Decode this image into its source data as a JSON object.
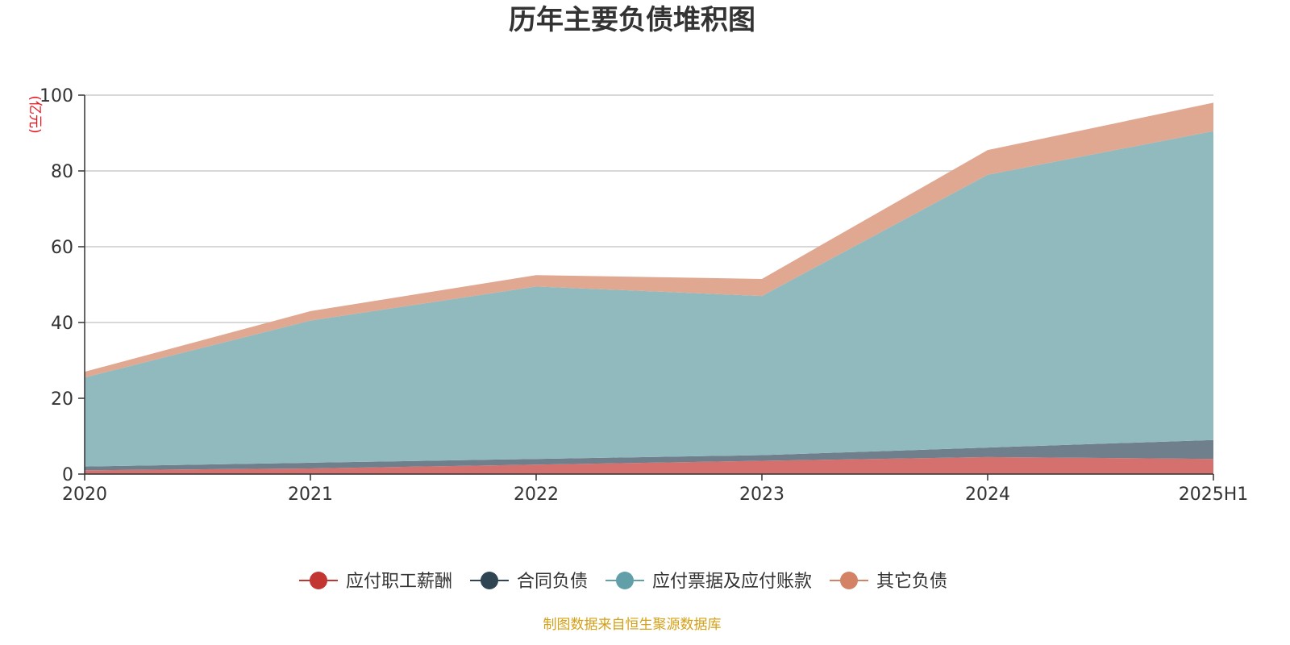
{
  "chart_data": {
    "type": "area",
    "stacked": true,
    "title": "历年主要负债堆积图",
    "unit_label": "(亿元)",
    "categories": [
      "2020",
      "2021",
      "2022",
      "2023",
      "2024",
      "2025H1"
    ],
    "y_ticks": [
      "0",
      "20",
      "40",
      "60",
      "80",
      "100"
    ],
    "ylim": [
      0,
      100
    ],
    "grid": true,
    "legend_position": "bottom-center",
    "series": [
      {
        "name": "应付职工薪酬",
        "values": [
          1.0,
          1.5,
          2.5,
          3.5,
          4.5,
          4.0
        ],
        "color": "#c23531",
        "fill": "#d4716f"
      },
      {
        "name": "合同负债",
        "values": [
          1.0,
          1.5,
          1.5,
          1.5,
          2.5,
          5.0
        ],
        "color": "#2f4554",
        "fill": "#6f7f8b"
      },
      {
        "name": "应付票据及应付账款",
        "values": [
          23.5,
          37.5,
          45.5,
          42.0,
          72.0,
          81.5
        ],
        "color": "#61a0a8",
        "fill": "#91babf"
      },
      {
        "name": "其它负债",
        "values": [
          1.5,
          2.5,
          3.0,
          4.5,
          6.5,
          7.5
        ],
        "color": "#d48265",
        "fill": "#e0a791"
      }
    ],
    "source": "制图数据来自恒生聚源数据库",
    "colors": {
      "unit": "#e8141e",
      "source": "#d4a017",
      "grid": "#cccccc",
      "axis": "#333333"
    }
  }
}
